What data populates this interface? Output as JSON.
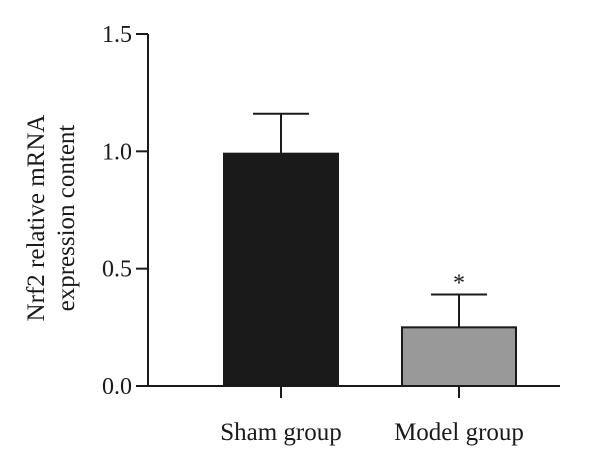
{
  "chart_data": {
    "type": "bar",
    "categories": [
      "Sham group",
      "Model group"
    ],
    "series": [
      {
        "values": [
          0.99,
          0.25
        ],
        "error_plus": [
          0.17,
          0.14
        ],
        "colors": [
          "#1a1a1a",
          "#999999"
        ]
      }
    ],
    "ylabel_lines": [
      "Nrf2 relative mRNA",
      "expression content"
    ],
    "ylim": [
      0,
      1.5
    ],
    "yticks": [
      0.0,
      0.5,
      1.0,
      1.5
    ],
    "ytick_labels": [
      "0.0",
      "0.5",
      "1.0",
      "1.5"
    ],
    "annotations": [
      {
        "category": "Model group",
        "text": "*"
      }
    ],
    "grid": false
  }
}
